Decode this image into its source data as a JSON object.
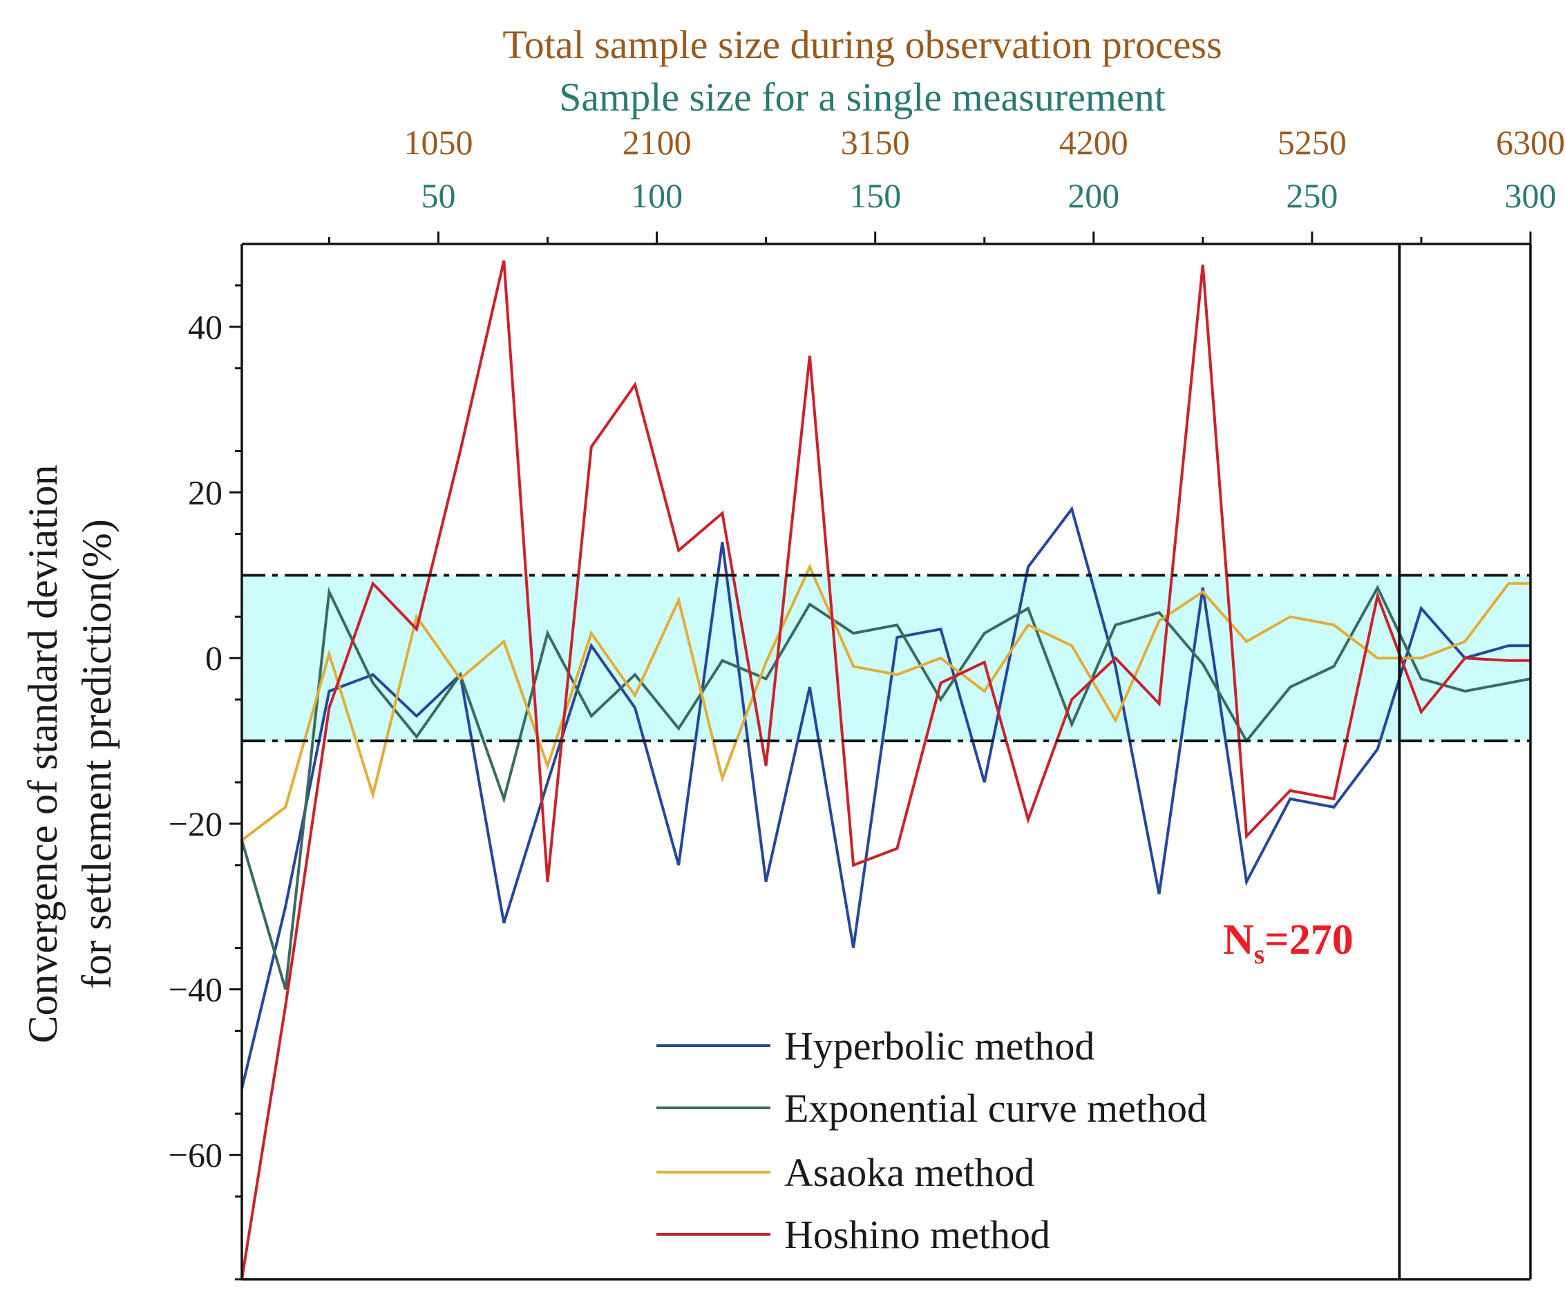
{
  "chart_data": {
    "type": "line",
    "top_axis_titles": {
      "total": "Total sample size during observation process",
      "single": "Sample size for a single measurement"
    },
    "ylabel_line1": "Convergence of standard deviation",
    "ylabel_line2": "for settlement prediction(%)",
    "xlim": [
      5,
      300
    ],
    "ylim": [
      -75,
      50
    ],
    "yticks": [
      {
        "value": 40,
        "label": "40"
      },
      {
        "value": 20,
        "label": "20"
      },
      {
        "value": 0,
        "label": "0"
      },
      {
        "value": -20,
        "label": "−20"
      },
      {
        "value": -40,
        "label": "−40"
      },
      {
        "value": -60,
        "label": "−60"
      }
    ],
    "xticks_single": [
      {
        "value": 50,
        "label": "50"
      },
      {
        "value": 100,
        "label": "100"
      },
      {
        "value": 150,
        "label": "150"
      },
      {
        "value": 200,
        "label": "200"
      },
      {
        "value": 250,
        "label": "250"
      },
      {
        "value": 300,
        "label": "300"
      }
    ],
    "xticks_total": [
      {
        "value": 50,
        "label": "1050"
      },
      {
        "value": 100,
        "label": "2100"
      },
      {
        "value": 150,
        "label": "3150"
      },
      {
        "value": 200,
        "label": "4200"
      },
      {
        "value": 250,
        "label": "5250"
      },
      {
        "value": 300,
        "label": "6300"
      }
    ],
    "band": {
      "lower": -10,
      "upper": 10
    },
    "vline": {
      "x": 270
    },
    "annotation": {
      "main": "N",
      "sub": "s",
      "rest": "=270"
    },
    "x": [
      5,
      15,
      25,
      35,
      45,
      55,
      65,
      75,
      85,
      95,
      105,
      115,
      125,
      135,
      145,
      155,
      165,
      175,
      185,
      195,
      205,
      215,
      225,
      235,
      245,
      255,
      265,
      275,
      285,
      295,
      300
    ],
    "series": [
      {
        "name": "Hyperbolic method",
        "color": "#26479a",
        "values": [
          -52,
          -30,
          -4,
          -2,
          -7,
          -2,
          -32,
          -15,
          1.5,
          -6,
          -25,
          14,
          -27,
          -3.5,
          -35,
          2.5,
          3.5,
          -15,
          11,
          18,
          -1,
          -28.5,
          8.5,
          -27,
          -17,
          -18,
          -11,
          6,
          0,
          1.5,
          1.5
        ]
      },
      {
        "name": "Exponential curve method",
        "color": "#3a6b5f",
        "values": [
          -22,
          -40,
          8,
          -3,
          -9.5,
          -2,
          -17,
          3,
          -7,
          -2,
          -8.5,
          -0.3,
          -2.5,
          6.5,
          3,
          4,
          -5,
          3,
          6,
          -8,
          4,
          5.5,
          -0.7,
          -10,
          -3.5,
          -1,
          8.5,
          -2.5,
          -4,
          -3,
          -2.5
        ]
      },
      {
        "name": "Asaoka method",
        "color": "#e2ad3a",
        "values": [
          -22,
          -18,
          0.5,
          -16.5,
          5,
          -2.5,
          2,
          -13,
          3,
          -4.5,
          7,
          -14.5,
          -0.5,
          11,
          -1,
          -2,
          0,
          -4,
          4,
          1.5,
          -7.5,
          4.5,
          8,
          2,
          5,
          4,
          0,
          0,
          2,
          9,
          9
        ]
      },
      {
        "name": "Hoshino method",
        "color": "#c8232c",
        "values": [
          -75,
          -42,
          -6,
          9,
          3.5,
          25,
          48,
          -27,
          25.5,
          33,
          13,
          17.5,
          -13,
          36.5,
          -25,
          -23,
          -3,
          -0.5,
          -19.5,
          -5,
          0,
          -5.5,
          47.5,
          -21.5,
          -16,
          -17,
          7.5,
          -6.5,
          0,
          -0.3,
          -0.3
        ]
      }
    ]
  }
}
